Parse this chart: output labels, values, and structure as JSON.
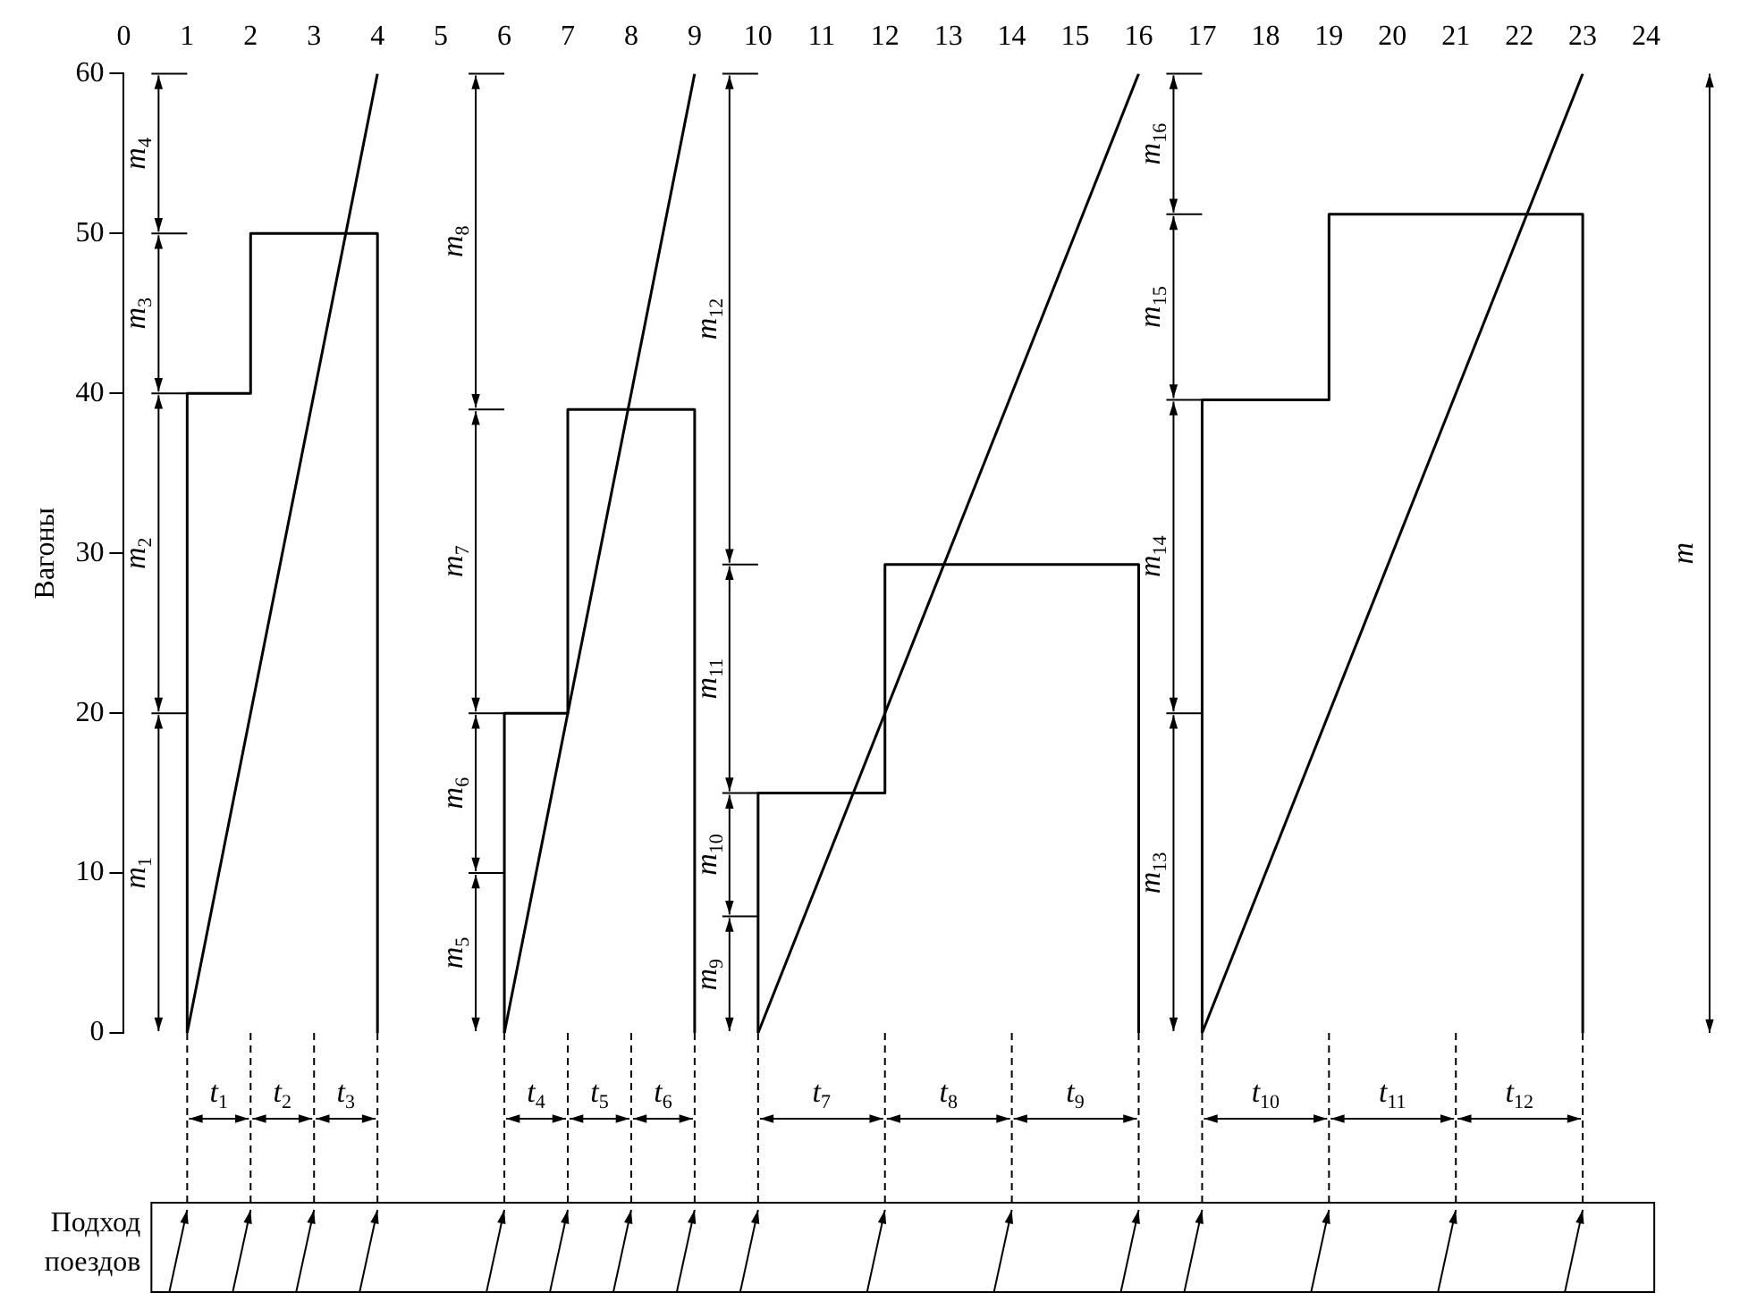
{
  "chart_data": {
    "type": "step",
    "ylabel": "Вагоны",
    "xlim": [
      0,
      25
    ],
    "xticks": [
      0,
      1,
      2,
      3,
      4,
      5,
      6,
      7,
      8,
      9,
      10,
      11,
      12,
      13,
      14,
      15,
      16,
      17,
      18,
      19,
      20,
      21,
      22,
      23,
      24
    ],
    "ylim": [
      0,
      60
    ],
    "yticks": [
      0,
      10,
      20,
      30,
      40,
      50,
      60
    ],
    "grid": false,
    "legend": false,
    "series": [
      {
        "color": "#000000",
        "x": [
          1,
          1,
          2,
          3,
          4,
          4
        ],
        "values": [
          0,
          20,
          40,
          50,
          50,
          0
        ]
      },
      {
        "color": "#000000",
        "x": [
          6,
          6,
          7,
          8,
          9,
          9
        ],
        "values": [
          0,
          10,
          20,
          39,
          39,
          0
        ]
      },
      {
        "color": "#000000",
        "x": [
          10,
          10,
          12,
          14,
          16,
          16
        ],
        "values": [
          0,
          7.3,
          15,
          29.3,
          29.3,
          0
        ]
      },
      {
        "color": "#000000",
        "x": [
          17,
          17,
          19,
          21,
          23,
          23
        ],
        "values": [
          0,
          20,
          39.6,
          51.2,
          51.2,
          0
        ]
      },
      {
        "type": "line",
        "color": "#000000",
        "x": [
          1,
          4
        ],
        "values": [
          0,
          60
        ]
      },
      {
        "type": "line",
        "color": "#000000",
        "x": [
          6,
          9
        ],
        "values": [
          0,
          60
        ]
      },
      {
        "type": "line",
        "color": "#000000",
        "x": [
          10,
          16
        ],
        "values": [
          0,
          60
        ]
      },
      {
        "type": "line",
        "color": "#000000",
        "x": [
          17,
          23
        ],
        "values": [
          0,
          60
        ]
      }
    ],
    "annotations": [
      "m$_{1}$",
      "m$_{2}$",
      "m$_{3}$",
      "m$_{4}$",
      "m$_{5}$",
      "m$_{6}$",
      "m$_{7}$",
      "m$_{8}$",
      "m$_{9}$",
      "m$_{10}$",
      "m$_{11}$",
      "m$_{12}$",
      "m$_{13}$",
      "m$_{14}$",
      "m$_{15}$",
      "m$_{16}$",
      "m",
      "t$_{1}$",
      "t$_{2}$",
      "t$_{3}$",
      "t$_{4}$",
      "t$_{5}$",
      "t$_{6}$",
      "t$_{7}$",
      "t$_{8}$",
      "t$_{9}$",
      "t$_{10}$",
      "t$_{11}$",
      "t$_{12}$",
      "Подход поездов"
    ]
  }
}
